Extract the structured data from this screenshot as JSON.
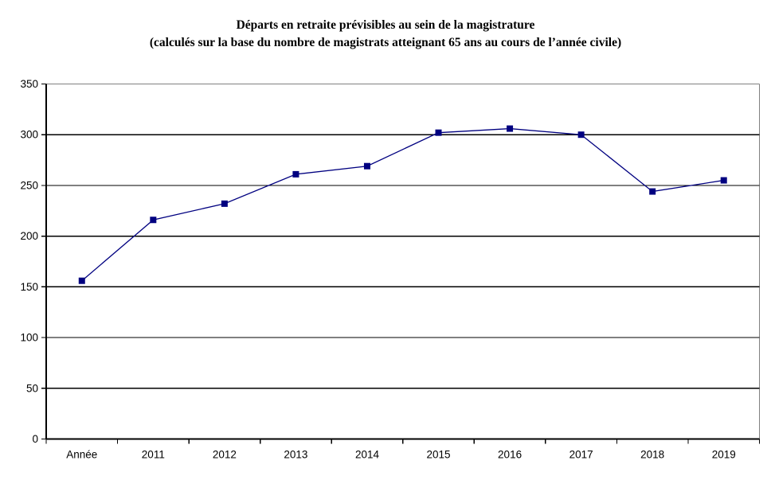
{
  "page": {
    "background": "#ffffff"
  },
  "chart_data": {
    "type": "line",
    "title": "Départs en retraite prévisibles au sein de la magistrature",
    "subtitle": "(calculés sur la base du nombre de magistrats atteignant 65 ans au cours de l’année civile)",
    "categories": [
      "Année",
      "2011",
      "2012",
      "2013",
      "2014",
      "2015",
      "2016",
      "2017",
      "2018",
      "2019"
    ],
    "values": [
      156,
      216,
      232,
      261,
      269,
      302,
      306,
      300,
      244,
      255
    ],
    "ylim": [
      0,
      350
    ],
    "yticks": [
      0,
      50,
      100,
      150,
      200,
      250,
      300,
      350
    ],
    "grid": true,
    "legend": false,
    "marker": "square",
    "colors": {
      "line": "#000080",
      "marker": "#000080",
      "gridline": "#000000",
      "axis": "#000000",
      "plot_border": "#808080",
      "text": "#000000"
    }
  }
}
